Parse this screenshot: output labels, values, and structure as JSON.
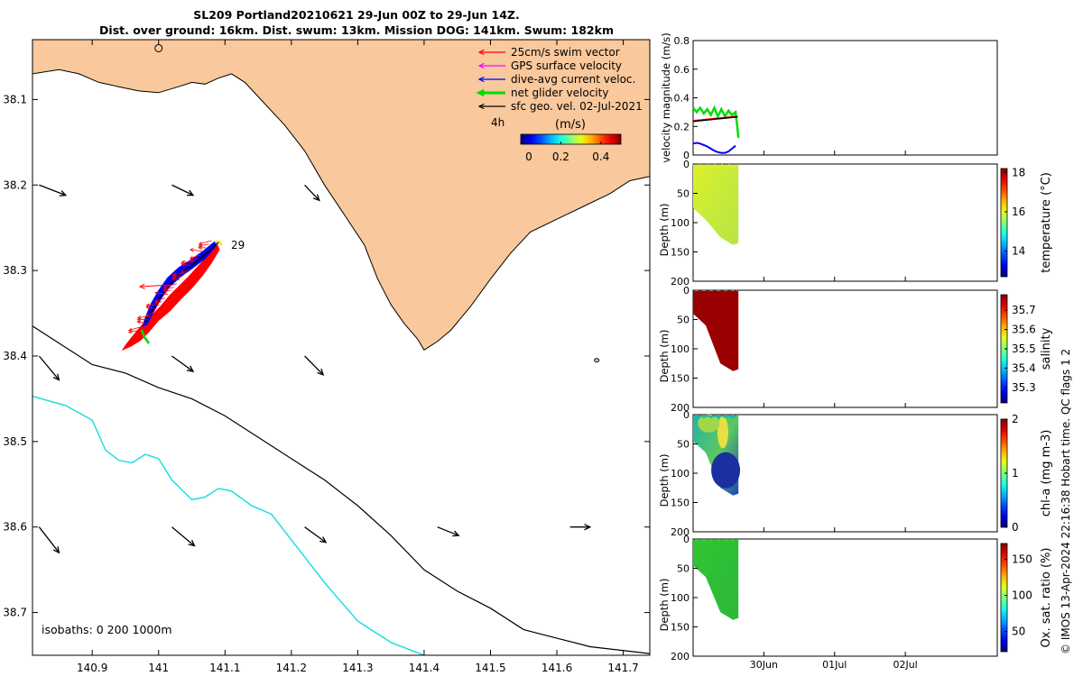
{
  "header": {
    "title_line1": "SL209 Portland20210621 29-Jun 00Z to 29-Jun 14Z.",
    "title_line2": "Dist. over ground: 16km. Dist. swum: 13km. Mission DOG: 141km. Swum: 182km"
  },
  "footer": {
    "copyright": "© IMOS 13-Apr-2024 22:16:38 Hobart time. QC flags 1  2"
  },
  "colors": {
    "land": "#F9C89C",
    "swim_vector": "#FF0000",
    "gps_velocity": "#FF00FF",
    "dive_avg_current": "#0000FF",
    "net_glider_velocity": "#00DD00",
    "sfc_geo": "#000000",
    "isobath_200": "#000000",
    "isobath_1000": "#22DDDD"
  },
  "chart_data": [
    {
      "type": "map",
      "name": "track-map",
      "xlim": [
        140.81,
        141.74
      ],
      "ylim": [
        38.75,
        38.03
      ],
      "x_ticks": [
        140.9,
        141,
        141.1,
        141.2,
        141.3,
        141.4,
        141.5,
        141.6,
        141.7
      ],
      "x_tick_labels": [
        "140.9",
        "141",
        "141.1",
        "141.2",
        "141.3",
        "141.4",
        "141.5",
        "141.6",
        "141.7"
      ],
      "y_ticks": [
        38.1,
        38.2,
        38.3,
        38.4,
        38.5,
        38.6,
        38.7
      ],
      "y_tick_labels": [
        "38.1",
        "38.2",
        "38.3",
        "38.4",
        "38.5",
        "38.6",
        "38.7"
      ],
      "legend": {
        "placement": "top-right",
        "entries": [
          {
            "label": "25cm/s swim vector",
            "color": "#FF0000"
          },
          {
            "label": "GPS surface velocity",
            "color": "#FF00FF"
          },
          {
            "label": "dive-avg current veloc.",
            "color": "#0000FF"
          },
          {
            "label": "net glider velocity",
            "color": "#00DD00"
          },
          {
            "label": "sfc geo. vel. 02-Jul-2021",
            "color": "#000000"
          }
        ]
      },
      "time_marker_label": "4h",
      "colorbar": {
        "label": "(m/s)",
        "range": [
          0,
          0.5
        ],
        "ticks": [
          0,
          0.2,
          0.4
        ],
        "tick_labels": [
          "0",
          "0.2",
          "0.4"
        ]
      },
      "track_day_label": "29",
      "track_start": {
        "lon": 141.08,
        "lat": 38.265
      },
      "track_end": {
        "lon": 140.97,
        "lat": 38.37
      },
      "isobath_label": "isobaths: 0   200  1000m",
      "coastline": [
        [
          140.81,
          38.07
        ],
        [
          140.85,
          38.065
        ],
        [
          140.88,
          38.07
        ],
        [
          140.91,
          38.08
        ],
        [
          140.94,
          38.085
        ],
        [
          140.97,
          38.09
        ],
        [
          141.0,
          38.092
        ],
        [
          141.03,
          38.085
        ],
        [
          141.05,
          38.08
        ],
        [
          141.07,
          38.082
        ],
        [
          141.09,
          38.075
        ],
        [
          141.11,
          38.07
        ],
        [
          141.13,
          38.08
        ],
        [
          141.16,
          38.105
        ],
        [
          141.19,
          38.13
        ],
        [
          141.22,
          38.16
        ],
        [
          141.25,
          38.2
        ],
        [
          141.28,
          38.235
        ],
        [
          141.31,
          38.27
        ],
        [
          141.33,
          38.31
        ],
        [
          141.35,
          38.34
        ],
        [
          141.37,
          38.362
        ],
        [
          141.39,
          38.38
        ],
        [
          141.4,
          38.393
        ],
        [
          141.42,
          38.383
        ],
        [
          141.44,
          38.37
        ],
        [
          141.47,
          38.342
        ],
        [
          141.5,
          38.31
        ],
        [
          141.53,
          38.28
        ],
        [
          141.56,
          38.255
        ],
        [
          141.6,
          38.24
        ],
        [
          141.64,
          38.225
        ],
        [
          141.68,
          38.21
        ],
        [
          141.71,
          38.195
        ],
        [
          141.74,
          38.19
        ]
      ],
      "isobath_200m": [
        [
          140.81,
          38.365
        ],
        [
          140.85,
          38.385
        ],
        [
          140.9,
          38.41
        ],
        [
          140.95,
          38.42
        ],
        [
          141.0,
          38.437
        ],
        [
          141.05,
          38.45
        ],
        [
          141.1,
          38.47
        ],
        [
          141.15,
          38.495
        ],
        [
          141.2,
          38.52
        ],
        [
          141.25,
          38.545
        ],
        [
          141.3,
          38.575
        ],
        [
          141.35,
          38.61
        ],
        [
          141.4,
          38.65
        ],
        [
          141.45,
          38.675
        ],
        [
          141.5,
          38.695
        ],
        [
          141.55,
          38.72
        ],
        [
          141.6,
          38.73
        ],
        [
          141.65,
          38.74
        ],
        [
          141.74,
          38.748
        ]
      ],
      "isobath_1000m": [
        [
          140.81,
          38.447
        ],
        [
          140.86,
          38.458
        ],
        [
          140.9,
          38.475
        ],
        [
          140.92,
          38.51
        ],
        [
          140.94,
          38.522
        ],
        [
          140.96,
          38.525
        ],
        [
          140.98,
          38.515
        ],
        [
          141.0,
          38.52
        ],
        [
          141.02,
          38.545
        ],
        [
          141.05,
          38.568
        ],
        [
          141.07,
          38.565
        ],
        [
          141.09,
          38.555
        ],
        [
          141.11,
          38.558
        ],
        [
          141.14,
          38.575
        ],
        [
          141.17,
          38.585
        ],
        [
          141.2,
          38.615
        ],
        [
          141.25,
          38.665
        ],
        [
          141.3,
          38.71
        ],
        [
          141.35,
          38.735
        ],
        [
          141.4,
          38.75
        ]
      ],
      "geo_vectors": [
        {
          "lon": 140.82,
          "lat": 38.2,
          "u": 0.04,
          "v": -0.012
        },
        {
          "lon": 141.02,
          "lat": 38.2,
          "u": 0.032,
          "v": -0.012
        },
        {
          "lon": 141.22,
          "lat": 38.2,
          "u": 0.022,
          "v": -0.018
        },
        {
          "lon": 140.82,
          "lat": 38.4,
          "u": 0.03,
          "v": -0.028
        },
        {
          "lon": 141.02,
          "lat": 38.4,
          "u": 0.032,
          "v": -0.018
        },
        {
          "lon": 141.22,
          "lat": 38.4,
          "u": 0.028,
          "v": -0.022
        },
        {
          "lon": 140.82,
          "lat": 38.6,
          "u": 0.03,
          "v": -0.03
        },
        {
          "lon": 141.02,
          "lat": 38.6,
          "u": 0.034,
          "v": -0.022
        },
        {
          "lon": 141.22,
          "lat": 38.6,
          "u": 0.032,
          "v": -0.018
        },
        {
          "lon": 141.42,
          "lat": 38.6,
          "u": 0.032,
          "v": -0.01
        },
        {
          "lon": 141.62,
          "lat": 38.6,
          "u": 0.03,
          "v": 0.0
        }
      ]
    },
    {
      "type": "line",
      "name": "velocity-magnitude",
      "ylabel": "velocity magnitude (m/s)",
      "ylim": [
        0,
        0.8
      ],
      "y_ticks": [
        0,
        0.2,
        0.4,
        0.6,
        0.8
      ],
      "y_tick_labels": [
        "0",
        "0.2",
        "0.4",
        "0.6",
        "0.8"
      ],
      "xlim_days": [
        0,
        4.3
      ],
      "x_ticks_days": [
        1,
        2,
        3
      ],
      "series": [
        {
          "color": "#00DD00",
          "x": [
            0.0,
            0.05,
            0.1,
            0.15,
            0.2,
            0.25,
            0.3,
            0.35,
            0.4,
            0.45,
            0.5,
            0.55,
            0.6,
            0.62,
            0.64
          ],
          "y": [
            0.33,
            0.3,
            0.33,
            0.29,
            0.32,
            0.28,
            0.33,
            0.27,
            0.32,
            0.27,
            0.31,
            0.28,
            0.3,
            0.22,
            0.12
          ]
        },
        {
          "color": "#FF0000",
          "x": [
            0.0,
            0.1,
            0.2,
            0.3,
            0.4,
            0.5,
            0.6,
            0.63
          ],
          "y": [
            0.24,
            0.245,
            0.25,
            0.255,
            0.26,
            0.265,
            0.27,
            0.27
          ]
        },
        {
          "color": "#000000",
          "x": [
            0.0,
            0.1,
            0.2,
            0.3,
            0.4,
            0.5,
            0.6,
            0.63
          ],
          "y": [
            0.235,
            0.24,
            0.245,
            0.25,
            0.255,
            0.26,
            0.265,
            0.265
          ]
        },
        {
          "color": "#0000FF",
          "x": [
            0.0,
            0.05,
            0.1,
            0.15,
            0.2,
            0.25,
            0.3,
            0.35,
            0.4,
            0.45,
            0.5,
            0.55,
            0.6
          ],
          "y": [
            0.08,
            0.085,
            0.08,
            0.07,
            0.06,
            0.045,
            0.03,
            0.02,
            0.015,
            0.015,
            0.025,
            0.045,
            0.065
          ]
        }
      ]
    },
    {
      "type": "heatmap",
      "name": "temperature-section",
      "ylabel": "Depth (m)",
      "colorbar_label": "temperature (°C)",
      "colorbar_range": [
        12.7,
        18.2
      ],
      "colorbar_ticks": [
        14,
        16,
        18
      ],
      "colorbar_tick_labels": [
        "14",
        "16",
        "18"
      ],
      "ylim": [
        200,
        0
      ],
      "y_ticks": [
        0,
        50,
        100,
        150,
        200
      ],
      "y_tick_labels": [
        "0",
        "50",
        "100",
        "150",
        "200"
      ],
      "xlim_days": [
        0,
        4.3
      ],
      "profile_x_range_days": [
        0.0,
        0.64
      ],
      "profile_max_depth_start": 75,
      "profile_max_depth_end": 135,
      "value_surface": 16.7,
      "value_bottom": 16.4,
      "fill_colors": [
        "#DDEF2A",
        "#C6EB3A",
        "#B8E446"
      ]
    },
    {
      "type": "heatmap",
      "name": "salinity-section",
      "ylabel": "Depth (m)",
      "colorbar_label": "salinity",
      "colorbar_range": [
        35.22,
        35.78
      ],
      "colorbar_ticks": [
        35.3,
        35.4,
        35.5,
        35.6,
        35.7
      ],
      "colorbar_tick_labels": [
        "35.3",
        "35.4",
        "35.5",
        "35.6",
        "35.7"
      ],
      "ylim": [
        200,
        0
      ],
      "y_ticks": [
        0,
        50,
        100,
        150,
        200
      ],
      "y_tick_labels": [
        "0",
        "50",
        "100",
        "150",
        "200"
      ],
      "xlim_days": [
        0,
        4.3
      ],
      "profile_x_range_days": [
        0.0,
        0.64
      ],
      "profile_max_depth_start": 40,
      "profile_max_depth_end": 135,
      "value_surface": 35.8,
      "value_bottom": 35.8,
      "fill_colors": [
        "#990000",
        "#9A0000",
        "#990000"
      ]
    },
    {
      "type": "heatmap",
      "name": "chla-section",
      "ylabel": "Depth (m)",
      "colorbar_label": "chl-a (mg m-3)",
      "colorbar_range": [
        0,
        2
      ],
      "colorbar_ticks": [
        0,
        1,
        2
      ],
      "colorbar_tick_labels": [
        "0",
        "1",
        "2"
      ],
      "ylim": [
        200,
        0
      ],
      "y_ticks": [
        0,
        50,
        100,
        150,
        200
      ],
      "y_tick_labels": [
        "0",
        "50",
        "100",
        "150",
        "200"
      ],
      "xlim_days": [
        0,
        4.3
      ],
      "profile_x_range_days": [
        0.0,
        0.64
      ],
      "profile_max_depth_start": 45,
      "profile_max_depth_end": 135,
      "value_surface": 0.8,
      "value_bottom": 0.0,
      "fill_colors": [
        "#20B2AA",
        "#5CC860",
        "#1D48B8"
      ]
    },
    {
      "type": "heatmap",
      "name": "oxygen-section",
      "ylabel": "Depth (m)",
      "colorbar_label": "Ox. sat. ratio (%)",
      "colorbar_range": [
        22,
        172
      ],
      "colorbar_ticks": [
        50,
        100,
        150
      ],
      "colorbar_tick_labels": [
        "50",
        "100",
        "150"
      ],
      "ylim": [
        200,
        0
      ],
      "y_ticks": [
        0,
        50,
        100,
        150,
        200
      ],
      "y_tick_labels": [
        "0",
        "50",
        "100",
        "150",
        "200"
      ],
      "xlim_days": [
        0,
        4.3
      ],
      "x_ticks_days": [
        1,
        2,
        3
      ],
      "x_tick_labels": [
        "30Jun",
        "01Jul",
        "02Jul"
      ],
      "profile_x_range_days": [
        0.0,
        0.64
      ],
      "profile_max_depth_start": 45,
      "profile_max_depth_end": 135,
      "value_surface": 98,
      "value_bottom": 96,
      "fill_colors": [
        "#33C433",
        "#2EBE36",
        "#2DB83A"
      ]
    }
  ]
}
